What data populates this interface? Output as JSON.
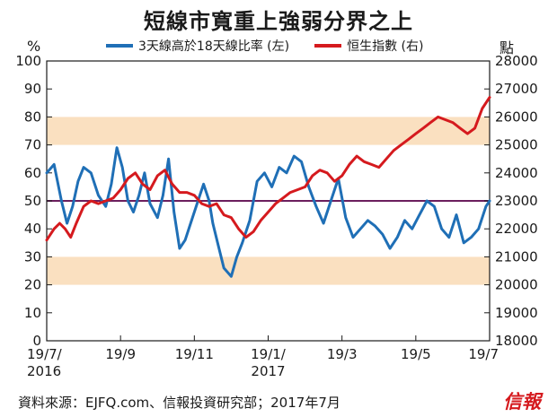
{
  "title": "短線市寬重上強弱分界之上",
  "unit_left": "%",
  "unit_right": "點",
  "source": "資料來源：EJFQ.com、信報投資研究部；2017年7月",
  "logo": "信報",
  "colors": {
    "blue": "#1f6fb6",
    "red": "#d51a1e",
    "band": "#fae0c0",
    "refline": "#6b1f5e",
    "axis": "#1a1a1a"
  },
  "chart_data": {
    "type": "line",
    "legend": [
      "3天線高於18天線比率 (左)",
      "恒生指數 (右)"
    ],
    "x_tick_labels": [
      "19/7/\n2016",
      "19/9",
      "19/11",
      "19/1/\n2017",
      "19/3",
      "19/5",
      "19/7"
    ],
    "x_ticks": [
      0,
      2,
      4,
      6,
      8,
      10,
      12
    ],
    "x_range": [
      0,
      12
    ],
    "y_left": {
      "ticks": [
        0,
        10,
        20,
        30,
        40,
        50,
        60,
        70,
        80,
        90,
        100
      ],
      "range": [
        0,
        100
      ]
    },
    "y_right": {
      "ticks": [
        18000,
        19000,
        20000,
        21000,
        22000,
        23000,
        24000,
        25000,
        26000,
        27000,
        28000
      ],
      "range": [
        18000,
        28000
      ]
    },
    "bands_left": [
      [
        70,
        80
      ],
      [
        20,
        30
      ]
    ],
    "reference_line_left": 50,
    "series": [
      {
        "name": "3天線高於18天線比率 (左)",
        "color": "#1f6fb6",
        "x": [
          0,
          0.2,
          0.4,
          0.55,
          0.7,
          0.85,
          1.0,
          1.2,
          1.4,
          1.6,
          1.75,
          1.9,
          2.05,
          2.2,
          2.35,
          2.5,
          2.65,
          2.8,
          3.0,
          3.15,
          3.3,
          3.45,
          3.6,
          3.75,
          3.9,
          4.1,
          4.25,
          4.4,
          4.5,
          4.65,
          4.8,
          5.0,
          5.15,
          5.3,
          5.5,
          5.7,
          5.9,
          6.1,
          6.3,
          6.5,
          6.7,
          6.9,
          7.1,
          7.3,
          7.5,
          7.7,
          7.9,
          8.1,
          8.3,
          8.5,
          8.7,
          8.9,
          9.1,
          9.3,
          9.5,
          9.7,
          9.9,
          10.1,
          10.3,
          10.5,
          10.7,
          10.9,
          11.1,
          11.3,
          11.5,
          11.7,
          11.9,
          12.0
        ],
        "values": [
          60,
          63,
          50,
          42,
          48,
          57,
          62,
          60,
          52,
          48,
          56,
          69,
          62,
          50,
          46,
          52,
          60,
          49,
          44,
          52,
          65,
          46,
          33,
          36,
          42,
          50,
          56,
          50,
          42,
          34,
          26,
          23,
          30,
          35,
          43,
          57,
          60,
          55,
          62,
          60,
          66,
          64,
          55,
          48,
          42,
          50,
          58,
          44,
          37,
          40,
          43,
          41,
          38,
          33,
          37,
          43,
          40,
          45,
          50,
          48,
          40,
          37,
          45,
          35,
          37,
          40,
          48,
          50
        ]
      },
      {
        "name": "恒生指數 (右)",
        "color": "#d51a1e",
        "x": [
          0,
          0.2,
          0.35,
          0.5,
          0.65,
          0.8,
          1.0,
          1.2,
          1.4,
          1.6,
          1.8,
          2.0,
          2.2,
          2.4,
          2.6,
          2.8,
          3.0,
          3.2,
          3.4,
          3.6,
          3.8,
          4.0,
          4.2,
          4.4,
          4.6,
          4.8,
          5.0,
          5.2,
          5.4,
          5.6,
          5.8,
          6.0,
          6.2,
          6.4,
          6.6,
          6.8,
          7.0,
          7.2,
          7.4,
          7.6,
          7.8,
          8.0,
          8.2,
          8.4,
          8.6,
          8.8,
          9.0,
          9.2,
          9.4,
          9.6,
          9.8,
          10.0,
          10.2,
          10.4,
          10.6,
          10.8,
          11.0,
          11.2,
          11.4,
          11.6,
          11.8,
          12.0
        ],
        "values": [
          21600,
          22000,
          22200,
          22000,
          21700,
          22200,
          22800,
          23000,
          22900,
          23000,
          23100,
          23400,
          23800,
          24000,
          23600,
          23400,
          23900,
          24100,
          23600,
          23300,
          23300,
          23200,
          22900,
          22800,
          22900,
          22500,
          22400,
          22000,
          21700,
          21900,
          22300,
          22600,
          22900,
          23100,
          23300,
          23400,
          23500,
          23900,
          24100,
          24000,
          23700,
          23900,
          24300,
          24600,
          24400,
          24300,
          24200,
          24500,
          24800,
          25000,
          25200,
          25400,
          25600,
          25800,
          26000,
          25900,
          25800,
          25600,
          25400,
          25600,
          26300,
          26700
        ]
      }
    ]
  }
}
